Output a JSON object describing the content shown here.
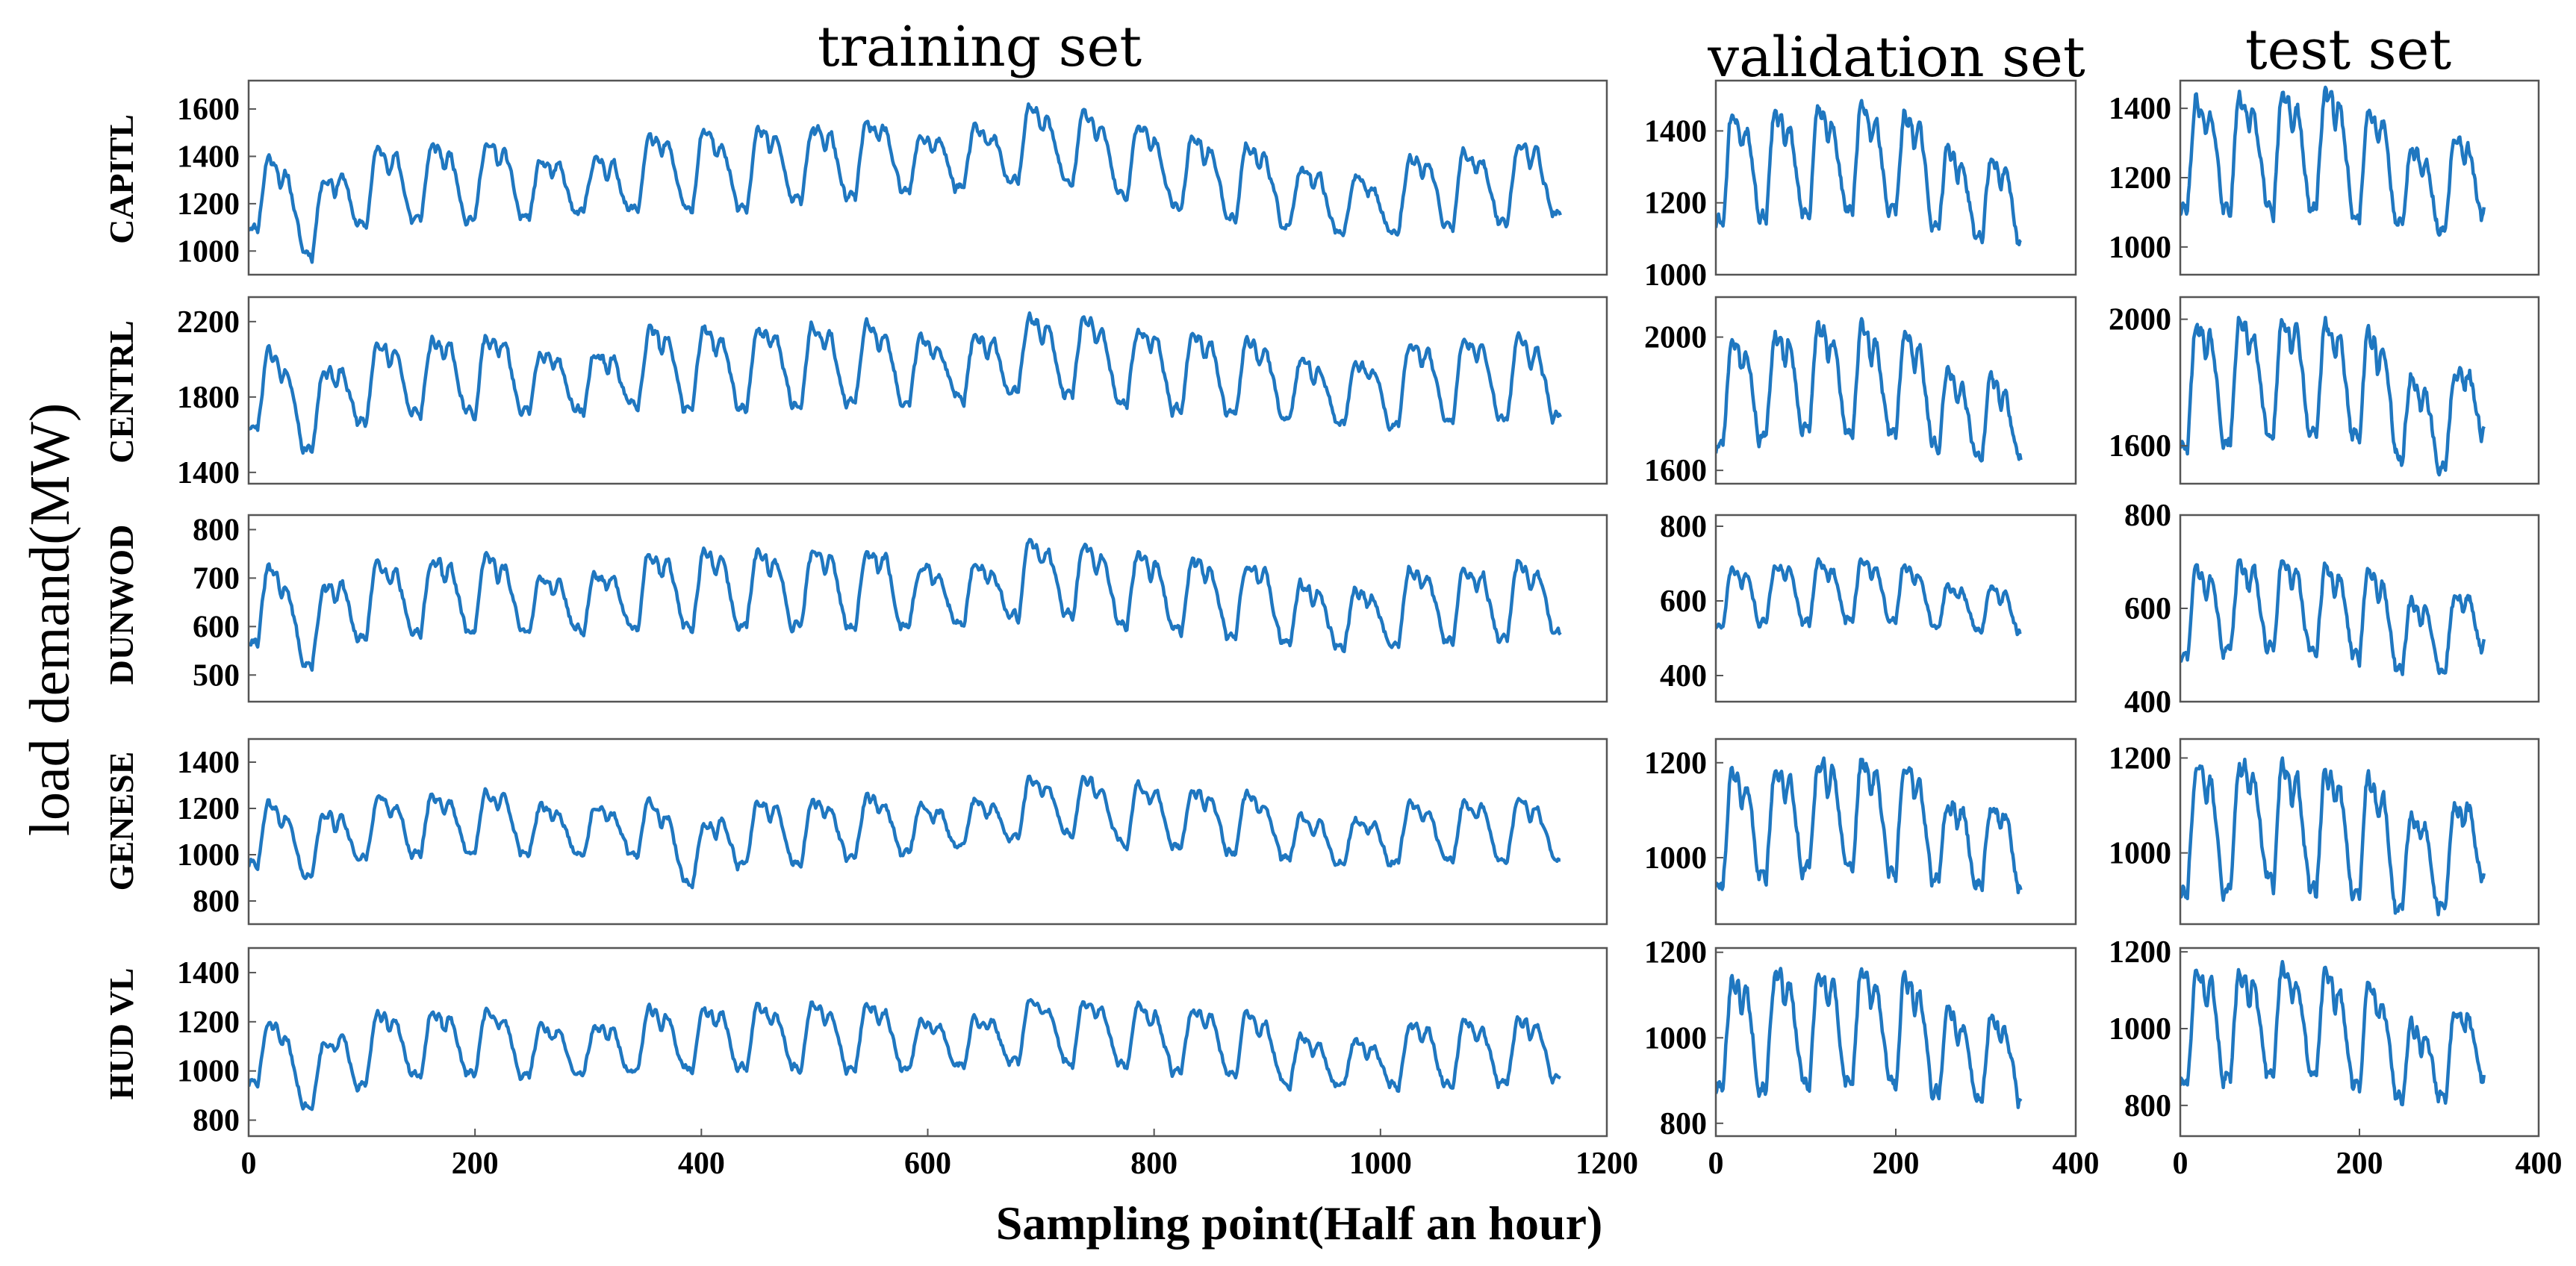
{
  "chart_data": {
    "type": "line",
    "column_titles": [
      "training set",
      "validation set",
      "test set"
    ],
    "row_labels": [
      "CAPITL",
      "CENTRL",
      "DUNWOD",
      "GENESE",
      "HUD VL"
    ],
    "xlabel": "Sampling point(Half an hour)",
    "ylabel": "load demand(MW)",
    "line_color": "#1f77c0",
    "x_ranges": [
      [
        0,
        1200
      ],
      [
        0,
        400
      ],
      [
        0,
        400
      ]
    ],
    "x_ticks": [
      [
        0,
        200,
        400,
        600,
        800,
        1000,
        1200
      ],
      [
        0,
        200,
        400
      ],
      [
        0,
        200,
        400
      ]
    ],
    "x_counts": [
      1160,
      340,
      340
    ],
    "panels": [
      [
        {
          "ylim": [
            900,
            1720
          ],
          "yticks": [
            1000,
            1200,
            1400,
            1600
          ],
          "base": 1080,
          "amp": 360,
          "trend": [
            [
              0,
              0
            ],
            [
              0.2,
              40
            ],
            [
              0.45,
              110
            ],
            [
              0.55,
              180
            ],
            [
              0.62,
              190
            ],
            [
              0.72,
              60
            ],
            [
              0.86,
              -30
            ],
            [
              1,
              50
            ]
          ],
          "dips": [
            [
              0.05,
              -130
            ]
          ],
          "seed": 11
        },
        {
          "ylim": [
            1340,
            2330
          ],
          "yticks": [
            1400,
            1800,
            2200
          ],
          "base": 1620,
          "amp": 480,
          "trend": [
            [
              0,
              0
            ],
            [
              0.2,
              70
            ],
            [
              0.45,
              110
            ],
            [
              0.55,
              160
            ],
            [
              0.62,
              160
            ],
            [
              0.72,
              60
            ],
            [
              0.86,
              20
            ],
            [
              1,
              40
            ]
          ],
          "dips": [
            [
              0.05,
              -160
            ]
          ],
          "seed": 21
        },
        {
          "ylim": [
            445,
            830
          ],
          "yticks": [
            500,
            600,
            700,
            800
          ],
          "base": 560,
          "amp": 180,
          "trend": [
            [
              0,
              0
            ],
            [
              0.2,
              20
            ],
            [
              0.45,
              30
            ],
            [
              0.62,
              50
            ],
            [
              0.72,
              10
            ],
            [
              0.86,
              -10
            ],
            [
              1,
              10
            ]
          ],
          "dips": [
            [
              0.05,
              -60
            ]
          ],
          "seed": 31
        },
        {
          "ylim": [
            700,
            1500
          ],
          "yticks": [
            800,
            1000,
            1200,
            1400
          ],
          "base": 940,
          "amp": 300,
          "trend": [
            [
              0,
              0
            ],
            [
              0.2,
              60
            ],
            [
              0.33,
              40
            ],
            [
              0.42,
              0
            ],
            [
              0.55,
              80
            ],
            [
              0.62,
              120
            ],
            [
              0.72,
              60
            ],
            [
              0.86,
              0
            ],
            [
              1,
              20
            ]
          ],
          "dips": [
            [
              0.05,
              -70
            ],
            [
              0.34,
              -130
            ]
          ],
          "seed": 41
        },
        {
          "ylim": [
            735,
            1500
          ],
          "yticks": [
            800,
            1000,
            1200,
            1400
          ],
          "base": 930,
          "amp": 300,
          "trend": [
            [
              0,
              0
            ],
            [
              0.2,
              40
            ],
            [
              0.45,
              60
            ],
            [
              0.62,
              80
            ],
            [
              0.72,
              40
            ],
            [
              0.86,
              -20
            ],
            [
              1,
              10
            ]
          ],
          "dips": [
            [
              0.05,
              -110
            ]
          ],
          "seed": 51
        }
      ],
      [
        {
          "ylim": [
            1000,
            1540
          ],
          "yticks": [
            1000,
            1200,
            1400
          ],
          "base": 1120,
          "amp": 340,
          "trend": [
            [
              0,
              0
            ],
            [
              0.5,
              30
            ],
            [
              0.72,
              0
            ],
            [
              1,
              -60
            ]
          ],
          "dips": [],
          "seed": 61
        },
        {
          "ylim": [
            1560,
            2120
          ],
          "yticks": [
            1600,
            2000
          ],
          "base": 1640,
          "amp": 360,
          "trend": [
            [
              0,
              0
            ],
            [
              0.3,
              60
            ],
            [
              0.6,
              40
            ],
            [
              1,
              -40
            ]
          ],
          "dips": [],
          "seed": 71
        },
        {
          "ylim": [
            330,
            830
          ],
          "yticks": [
            400,
            600,
            800
          ],
          "base": 520,
          "amp": 180,
          "trend": [
            [
              0,
              0
            ],
            [
              0.5,
              20
            ],
            [
              1,
              -20
            ]
          ],
          "dips": [],
          "seed": 81
        },
        {
          "ylim": [
            860,
            1250
          ],
          "yticks": [
            1000,
            1200
          ],
          "base": 930,
          "amp": 260,
          "trend": [
            [
              0,
              0
            ],
            [
              0.4,
              40
            ],
            [
              1,
              -10
            ]
          ],
          "dips": [],
          "seed": 91
        },
        {
          "ylim": [
            770,
            1210
          ],
          "yticks": [
            800,
            1000,
            1200
          ],
          "base": 860,
          "amp": 300,
          "trend": [
            [
              0,
              0
            ],
            [
              0.5,
              20
            ],
            [
              1,
              -30
            ]
          ],
          "dips": [],
          "seed": 101
        }
      ],
      [
        {
          "ylim": [
            920,
            1480
          ],
          "yticks": [
            1000,
            1200,
            1400
          ],
          "base": 1080,
          "amp": 370,
          "trend": [
            [
              0,
              0
            ],
            [
              0.5,
              20
            ],
            [
              0.8,
              -60
            ],
            [
              1,
              -20
            ]
          ],
          "dips": [],
          "seed": 111
        },
        {
          "ylim": [
            1480,
            2070
          ],
          "yticks": [
            1600,
            2000
          ],
          "base": 1580,
          "amp": 420,
          "trend": [
            [
              0,
              0
            ],
            [
              0.3,
              40
            ],
            [
              0.6,
              0
            ],
            [
              0.85,
              -80
            ],
            [
              1,
              40
            ]
          ],
          "dips": [],
          "seed": 121
        },
        {
          "ylim": [
            400,
            800
          ],
          "yticks": [
            400,
            600,
            800
          ],
          "base": 480,
          "amp": 220,
          "trend": [
            [
              0,
              0
            ],
            [
              0.3,
              20
            ],
            [
              0.6,
              0
            ],
            [
              0.85,
              -30
            ],
            [
              1,
              20
            ]
          ],
          "dips": [],
          "seed": 131
        },
        {
          "ylim": [
            850,
            1240
          ],
          "yticks": [
            1000,
            1200
          ],
          "base": 900,
          "amp": 300,
          "trend": [
            [
              0,
              0
            ],
            [
              0.3,
              20
            ],
            [
              0.6,
              -20
            ],
            [
              0.85,
              -40
            ],
            [
              1,
              40
            ]
          ],
          "dips": [],
          "seed": 141
        },
        {
          "ylim": [
            720,
            1210
          ],
          "yticks": [
            800,
            1000,
            1200
          ],
          "base": 840,
          "amp": 320,
          "trend": [
            [
              0,
              0
            ],
            [
              0.4,
              20
            ],
            [
              0.8,
              -60
            ],
            [
              1,
              0
            ]
          ],
          "dips": [],
          "seed": 151
        }
      ]
    ]
  }
}
